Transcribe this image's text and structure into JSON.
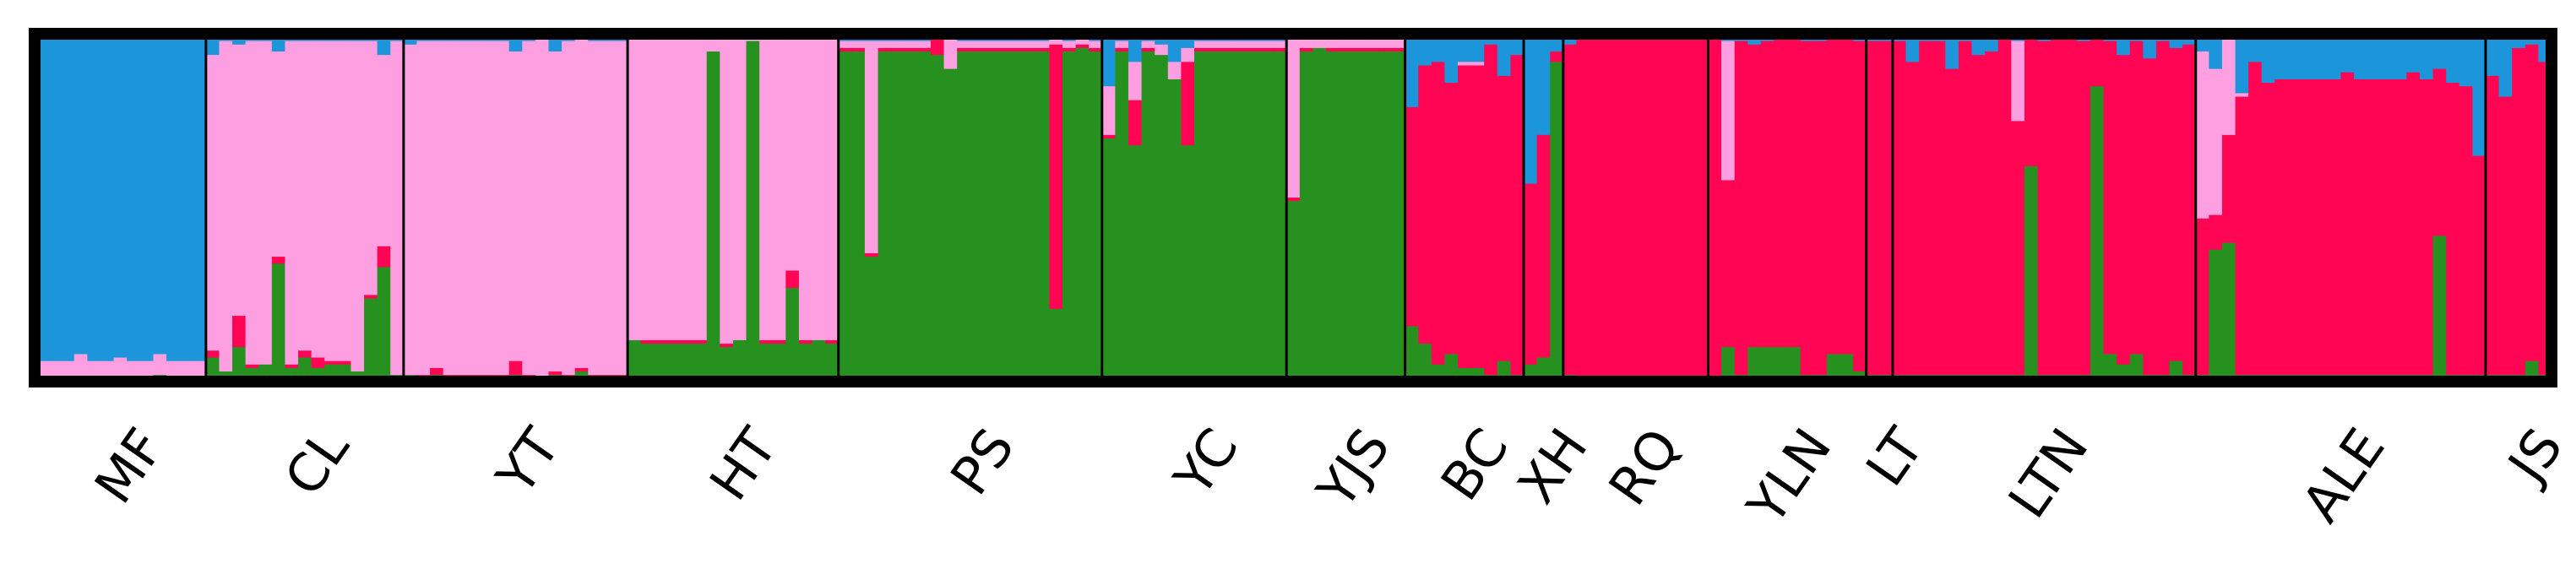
{
  "chart_data": {
    "type": "bar",
    "stacked": true,
    "normalized": true,
    "ylim": [
      0,
      1
    ],
    "grid": false,
    "legend": "none",
    "cluster_colors": [
      "#27911f",
      "#ff0553",
      "#fd9fe1",
      "#1d95db"
    ],
    "populations": [
      {
        "label": "MF",
        "count": 13,
        "base": [
          0.01,
          0.0,
          0.05,
          0.94
        ],
        "overrides": [
          [
            3,
            [
              0.01,
              0.0,
              0.07,
              0.92
            ]
          ],
          [
            6,
            [
              0.01,
              0.0,
              0.06,
              0.93
            ]
          ],
          [
            9,
            [
              0.02,
              0.0,
              0.06,
              0.92
            ]
          ]
        ]
      },
      {
        "label": "CL",
        "count": 15,
        "base": [
          0.05,
          0.01,
          0.92,
          0.02
        ],
        "overrides": [
          [
            0,
            [
              0.07,
              0.02,
              0.85,
              0.06
            ]
          ],
          [
            1,
            [
              0.03,
              0.0,
              0.95,
              0.02
            ]
          ],
          [
            2,
            [
              0.1,
              0.09,
              0.78,
              0.03
            ]
          ],
          [
            3,
            [
              0.04,
              0.01,
              0.93,
              0.02
            ]
          ],
          [
            4,
            [
              0.05,
              0.0,
              0.93,
              0.02
            ]
          ],
          [
            5,
            [
              0.34,
              0.02,
              0.59,
              0.05
            ]
          ],
          [
            6,
            [
              0.04,
              0.01,
              0.93,
              0.02
            ]
          ],
          [
            7,
            [
              0.07,
              0.02,
              0.89,
              0.02
            ]
          ],
          [
            8,
            [
              0.04,
              0.03,
              0.91,
              0.02
            ]
          ],
          [
            11,
            [
              0.03,
              0.0,
              0.95,
              0.02
            ]
          ],
          [
            12,
            [
              0.24,
              0.01,
              0.73,
              0.02
            ]
          ],
          [
            13,
            [
              0.33,
              0.06,
              0.55,
              0.06
            ]
          ],
          [
            14,
            [
              0.02,
              0.0,
              0.96,
              0.02
            ]
          ]
        ]
      },
      {
        "label": "YT",
        "count": 17,
        "base": [
          0.01,
          0.01,
          0.96,
          0.02
        ],
        "overrides": [
          [
            0,
            [
              0.02,
              0.0,
              0.95,
              0.03
            ]
          ],
          [
            2,
            [
              0.02,
              0.02,
              0.94,
              0.02
            ]
          ],
          [
            8,
            [
              0.02,
              0.04,
              0.89,
              0.05
            ]
          ],
          [
            10,
            [
              0.01,
              0.0,
              0.98,
              0.01
            ]
          ],
          [
            11,
            [
              0.02,
              0.01,
              0.92,
              0.05
            ]
          ],
          [
            13,
            [
              0.03,
              0.01,
              0.95,
              0.01
            ]
          ]
        ]
      },
      {
        "label": "HT",
        "count": 16,
        "base": [
          0.11,
          0.01,
          0.87,
          0.01
        ],
        "overrides": [
          [
            0,
            [
              0.12,
              0.0,
              0.87,
              0.01
            ]
          ],
          [
            6,
            [
              0.95,
              0.0,
              0.05,
              0.0
            ]
          ],
          [
            7,
            [
              0.1,
              0.01,
              0.88,
              0.01
            ]
          ],
          [
            8,
            [
              0.12,
              0.0,
              0.88,
              0.0
            ]
          ],
          [
            9,
            [
              0.98,
              0.0,
              0.02,
              0.0
            ]
          ],
          [
            12,
            [
              0.27,
              0.05,
              0.68,
              0.0
            ]
          ],
          [
            14,
            [
              0.12,
              0.0,
              0.88,
              0.0
            ]
          ]
        ]
      },
      {
        "label": "PS",
        "count": 20,
        "base": [
          0.95,
          0.01,
          0.02,
          0.02
        ],
        "overrides": [
          [
            2,
            [
              0.36,
              0.01,
              0.61,
              0.02
            ]
          ],
          [
            7,
            [
              0.94,
              0.05,
              0.01,
              0.0
            ]
          ],
          [
            8,
            [
              0.9,
              0.0,
              0.1,
              0.0
            ]
          ],
          [
            16,
            [
              0.21,
              0.76,
              0.03,
              0.0
            ]
          ],
          [
            18,
            [
              0.96,
              0.01,
              0.03,
              0.0
            ]
          ]
        ]
      },
      {
        "label": "YC",
        "count": 14,
        "base": [
          0.95,
          0.01,
          0.02,
          0.02
        ],
        "overrides": [
          [
            0,
            [
              0.7,
              0.01,
              0.14,
              0.15
            ]
          ],
          [
            2,
            [
              0.68,
              0.13,
              0.11,
              0.08
            ]
          ],
          [
            4,
            [
              0.94,
              0.0,
              0.03,
              0.03
            ]
          ],
          [
            5,
            [
              0.87,
              0.0,
              0.05,
              0.08
            ]
          ],
          [
            6,
            [
              0.68,
              0.24,
              0.04,
              0.04
            ]
          ]
        ]
      },
      {
        "label": "YJS",
        "count": 9,
        "base": [
          0.95,
          0.01,
          0.03,
          0.01
        ],
        "overrides": [
          [
            0,
            [
              0.52,
              0.01,
              0.47,
              0.0
            ]
          ],
          [
            2,
            [
              0.96,
              0.0,
              0.04,
              0.0
            ]
          ]
        ]
      },
      {
        "label": "BC",
        "count": 9,
        "base": [
          0.04,
          0.87,
          0.01,
          0.08
        ],
        "overrides": [
          [
            0,
            [
              0.16,
              0.63,
              0.0,
              0.21
            ]
          ],
          [
            1,
            [
              0.11,
              0.8,
              0.0,
              0.09
            ]
          ],
          [
            2,
            [
              0.05,
              0.87,
              0.0,
              0.08
            ]
          ],
          [
            3,
            [
              0.08,
              0.78,
              0.0,
              0.14
            ]
          ],
          [
            6,
            [
              0.02,
              0.95,
              0.0,
              0.03
            ]
          ],
          [
            7,
            [
              0.06,
              0.82,
              0.0,
              0.12
            ]
          ],
          [
            8,
            [
              0.02,
              0.92,
              0.0,
              0.06
            ]
          ]
        ]
      },
      {
        "label": "XH",
        "count": 3,
        "base": [
          0.92,
          0.03,
          0.0,
          0.05
        ],
        "overrides": [
          [
            0,
            [
              0.05,
              0.52,
              0.0,
              0.43
            ]
          ],
          [
            1,
            [
              0.07,
              0.64,
              0.0,
              0.29
            ]
          ]
        ]
      },
      {
        "label": "RQ",
        "count": 11,
        "base": [
          0.01,
          0.98,
          0.0,
          0.01
        ],
        "overrides": [
          [
            0,
            [
              0.02,
              0.95,
              0.0,
              0.03
            ]
          ]
        ]
      },
      {
        "label": "YLN",
        "count": 12,
        "base": [
          0.07,
          0.91,
          0.0,
          0.02
        ],
        "overrides": [
          [
            0,
            [
              0.01,
              0.98,
              0.0,
              0.01
            ]
          ],
          [
            1,
            [
              0.1,
              0.48,
              0.4,
              0.02
            ]
          ],
          [
            2,
            [
              0.02,
              0.96,
              0.0,
              0.02
            ]
          ],
          [
            3,
            [
              0.1,
              0.87,
              0.0,
              0.03
            ]
          ],
          [
            4,
            [
              0.1,
              0.88,
              0.0,
              0.02
            ]
          ],
          [
            5,
            [
              0.1,
              0.89,
              0.0,
              0.01
            ]
          ],
          [
            6,
            [
              0.1,
              0.89,
              0.0,
              0.01
            ]
          ],
          [
            7,
            [
              0.02,
              0.96,
              0.0,
              0.02
            ]
          ],
          [
            8,
            [
              0.02,
              0.96,
              0.0,
              0.02
            ]
          ],
          [
            9,
            [
              0.08,
              0.91,
              0.0,
              0.01
            ]
          ],
          [
            10,
            [
              0.08,
              0.91,
              0.0,
              0.01
            ]
          ],
          [
            11,
            [
              0.03,
              0.95,
              0.0,
              0.02
            ]
          ]
        ]
      },
      {
        "label": "LT",
        "count": 2,
        "base": [
          0.02,
          0.96,
          0.0,
          0.02
        ],
        "overrides": []
      },
      {
        "label": "LTN",
        "count": 23,
        "base": [
          0.02,
          0.96,
          0.0,
          0.02
        ],
        "overrides": [
          [
            1,
            [
              0.02,
              0.9,
              0.0,
              0.08
            ]
          ],
          [
            2,
            [
              0.02,
              0.96,
              0.0,
              0.02
            ]
          ],
          [
            4,
            [
              0.02,
              0.88,
              0.0,
              0.1
            ]
          ],
          [
            6,
            [
              0.02,
              0.92,
              0.0,
              0.06
            ]
          ],
          [
            7,
            [
              0.02,
              0.93,
              0.0,
              0.05
            ]
          ],
          [
            8,
            [
              0.02,
              0.97,
              0.0,
              0.01
            ]
          ],
          [
            9,
            [
              0.02,
              0.73,
              0.23,
              0.02
            ]
          ],
          [
            10,
            [
              0.62,
              0.37,
              0.0,
              0.01
            ]
          ],
          [
            12,
            [
              0.02,
              0.97,
              0.0,
              0.01
            ]
          ],
          [
            13,
            [
              0.02,
              0.97,
              0.0,
              0.01
            ]
          ],
          [
            15,
            [
              0.85,
              0.14,
              0.0,
              0.01
            ]
          ],
          [
            16,
            [
              0.08,
              0.9,
              0.0,
              0.02
            ]
          ],
          [
            17,
            [
              0.05,
              0.89,
              0.0,
              0.06
            ]
          ],
          [
            18,
            [
              0.08,
              0.9,
              0.0,
              0.02
            ]
          ],
          [
            19,
            [
              0.02,
              0.91,
              0.0,
              0.07
            ]
          ],
          [
            20,
            [
              0.02,
              0.96,
              0.0,
              0.02
            ]
          ],
          [
            21,
            [
              0.06,
              0.9,
              0.0,
              0.04
            ]
          ],
          [
            22,
            [
              0.02,
              0.95,
              0.0,
              0.03
            ]
          ]
        ]
      },
      {
        "label": "ALE",
        "count": 22,
        "base": [
          0.02,
          0.85,
          0.0,
          0.13
        ],
        "overrides": [
          [
            0,
            [
              0.02,
              0.45,
              0.48,
              0.05
            ]
          ],
          [
            1,
            [
              0.38,
              0.1,
              0.42,
              0.1
            ]
          ],
          [
            2,
            [
              0.4,
              0.31,
              0.29,
              0.0
            ]
          ],
          [
            3,
            [
              0.02,
              0.8,
              0.01,
              0.17
            ]
          ],
          [
            4,
            [
              0.02,
              0.9,
              0.0,
              0.08
            ]
          ],
          [
            5,
            [
              0.02,
              0.84,
              0.0,
              0.14
            ]
          ],
          [
            6,
            [
              0.02,
              0.85,
              0.0,
              0.13
            ]
          ],
          [
            11,
            [
              0.02,
              0.87,
              0.0,
              0.11
            ]
          ],
          [
            16,
            [
              0.02,
              0.87,
              0.0,
              0.11
            ]
          ],
          [
            18,
            [
              0.42,
              0.48,
              0.0,
              0.1
            ]
          ],
          [
            19,
            [
              0.02,
              0.84,
              0.0,
              0.14
            ]
          ],
          [
            20,
            [
              0.02,
              0.83,
              0.0,
              0.15
            ]
          ],
          [
            21,
            [
              0.02,
              0.63,
              0.0,
              0.35
            ]
          ]
        ]
      },
      {
        "label": "JS",
        "count": 5,
        "base": [
          0.02,
          0.94,
          0.0,
          0.04
        ],
        "overrides": [
          [
            0,
            [
              0.02,
              0.86,
              0.0,
              0.12
            ]
          ],
          [
            1,
            [
              0.02,
              0.8,
              0.0,
              0.18
            ]
          ],
          [
            3,
            [
              0.06,
              0.91,
              0.0,
              0.03
            ]
          ],
          [
            4,
            [
              0.02,
              0.9,
              0.0,
              0.08
            ]
          ]
        ]
      }
    ]
  }
}
